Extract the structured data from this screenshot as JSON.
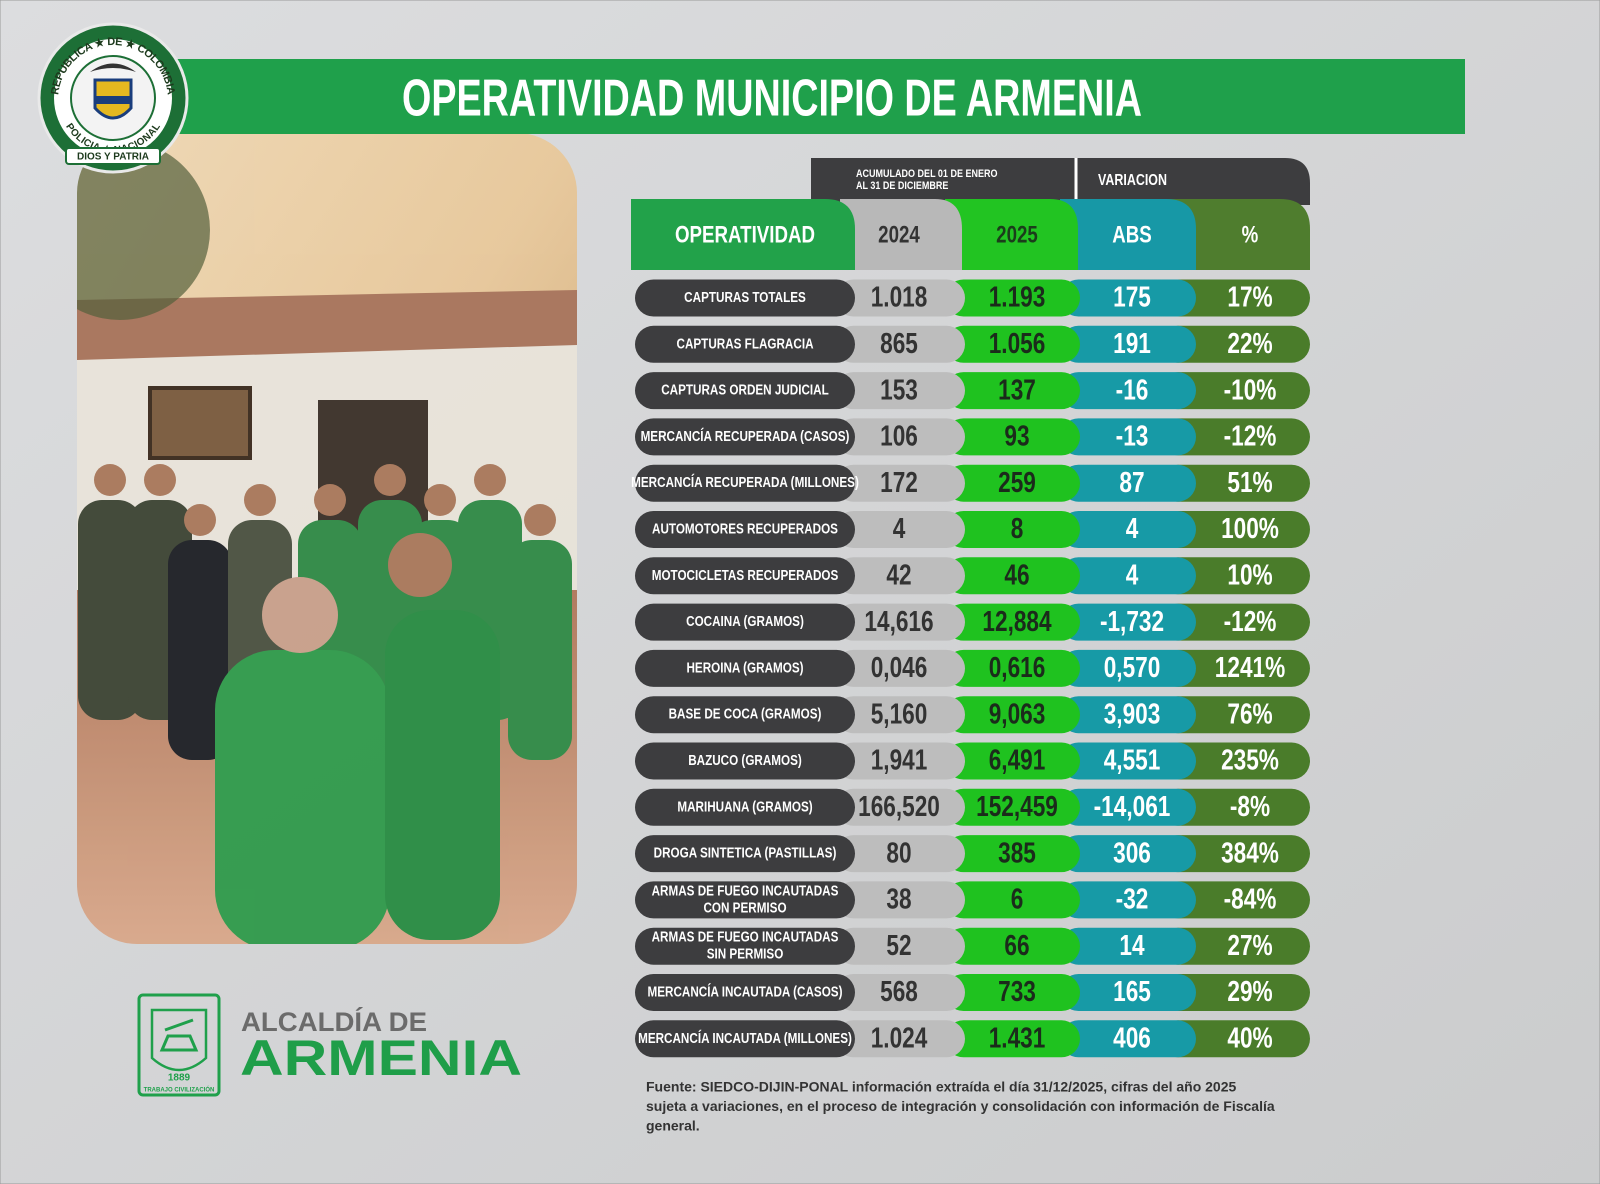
{
  "header": {
    "title": "OPERATIVIDAD MUNICIPIO DE ARMENIA",
    "period": [
      "ACUMULADO DEL 01 DE ENERO",
      "AL 31 DE DICIEMBRE"
    ],
    "variation": "VARIACION"
  },
  "seal": {
    "top": "REPUBLICA ★ DE ★ COLOMBIA",
    "middle": "POLICIA ★ NACIONAL",
    "bottom": "DIOS Y PATRIA"
  },
  "table": {
    "columns": [
      "OPERATIVIDAD",
      "2024",
      "2025",
      "ABS",
      "%"
    ],
    "rows": [
      [
        [
          "CAPTURAS TOTALES"
        ],
        "1.018",
        "1.193",
        "175",
        "17%"
      ],
      [
        [
          "CAPTURAS FLAGRACIA"
        ],
        "865",
        "1.056",
        "191",
        "22%"
      ],
      [
        [
          "CAPTURAS ORDEN JUDICIAL"
        ],
        "153",
        "137",
        "-16",
        "-10%"
      ],
      [
        [
          "MERCANCÍA RECUPERADA (CASOS)"
        ],
        "106",
        "93",
        "-13",
        "-12%"
      ],
      [
        [
          "MERCANCÍA RECUPERADA (MILLONES)"
        ],
        "172",
        "259",
        "87",
        "51%"
      ],
      [
        [
          "AUTOMOTORES RECUPERADOS"
        ],
        "4",
        "8",
        "4",
        "100%"
      ],
      [
        [
          "MOTOCICLETAS RECUPERADOS"
        ],
        "42",
        "46",
        "4",
        "10%"
      ],
      [
        [
          "COCAINA (GRAMOS)"
        ],
        "14,616",
        "12,884",
        "-1,732",
        "-12%"
      ],
      [
        [
          "HEROINA (GRAMOS)"
        ],
        "0,046",
        "0,616",
        "0,570",
        "1241%"
      ],
      [
        [
          "BASE DE COCA (GRAMOS)"
        ],
        "5,160",
        "9,063",
        "3,903",
        "76%"
      ],
      [
        [
          "BAZUCO (GRAMOS)"
        ],
        "1,941",
        "6,491",
        "4,551",
        "235%"
      ],
      [
        [
          "MARIHUANA (GRAMOS)"
        ],
        "166,520",
        "152,459",
        "-14,061",
        "-8%"
      ],
      [
        [
          "DROGA SINTETICA (PASTILLAS)"
        ],
        "80",
        "385",
        "306",
        "384%"
      ],
      [
        [
          "ARMAS DE FUEGO INCAUTADAS",
          "CON PERMISO"
        ],
        "38",
        "6",
        "-32",
        "-84%"
      ],
      [
        [
          "ARMAS DE FUEGO INCAUTADAS",
          "SIN PERMISO"
        ],
        "52",
        "66",
        "14",
        "27%"
      ],
      [
        [
          "MERCANCÍA INCAUTADA (CASOS)"
        ],
        "568",
        "733",
        "165",
        "29%"
      ],
      [
        [
          "MERCANCÍA INCAUTADA (MILLONES)"
        ],
        "1.024",
        "1.431",
        "406",
        "40%"
      ]
    ]
  },
  "footnote": [
    "Fuente: SIEDCO-DIJIN-PONAL información extraída el día 31/12/2025, cifras del año 2025",
    "sujeta a variaciones, en el proceso de integración y consolidación con información de Fiscalía",
    "general."
  ],
  "logo": {
    "line1": "ALCALDÍA DE",
    "line2": "ARMENIA",
    "year": "1889",
    "motto": "TRABAJO  CIVILIZACIÓN"
  }
}
